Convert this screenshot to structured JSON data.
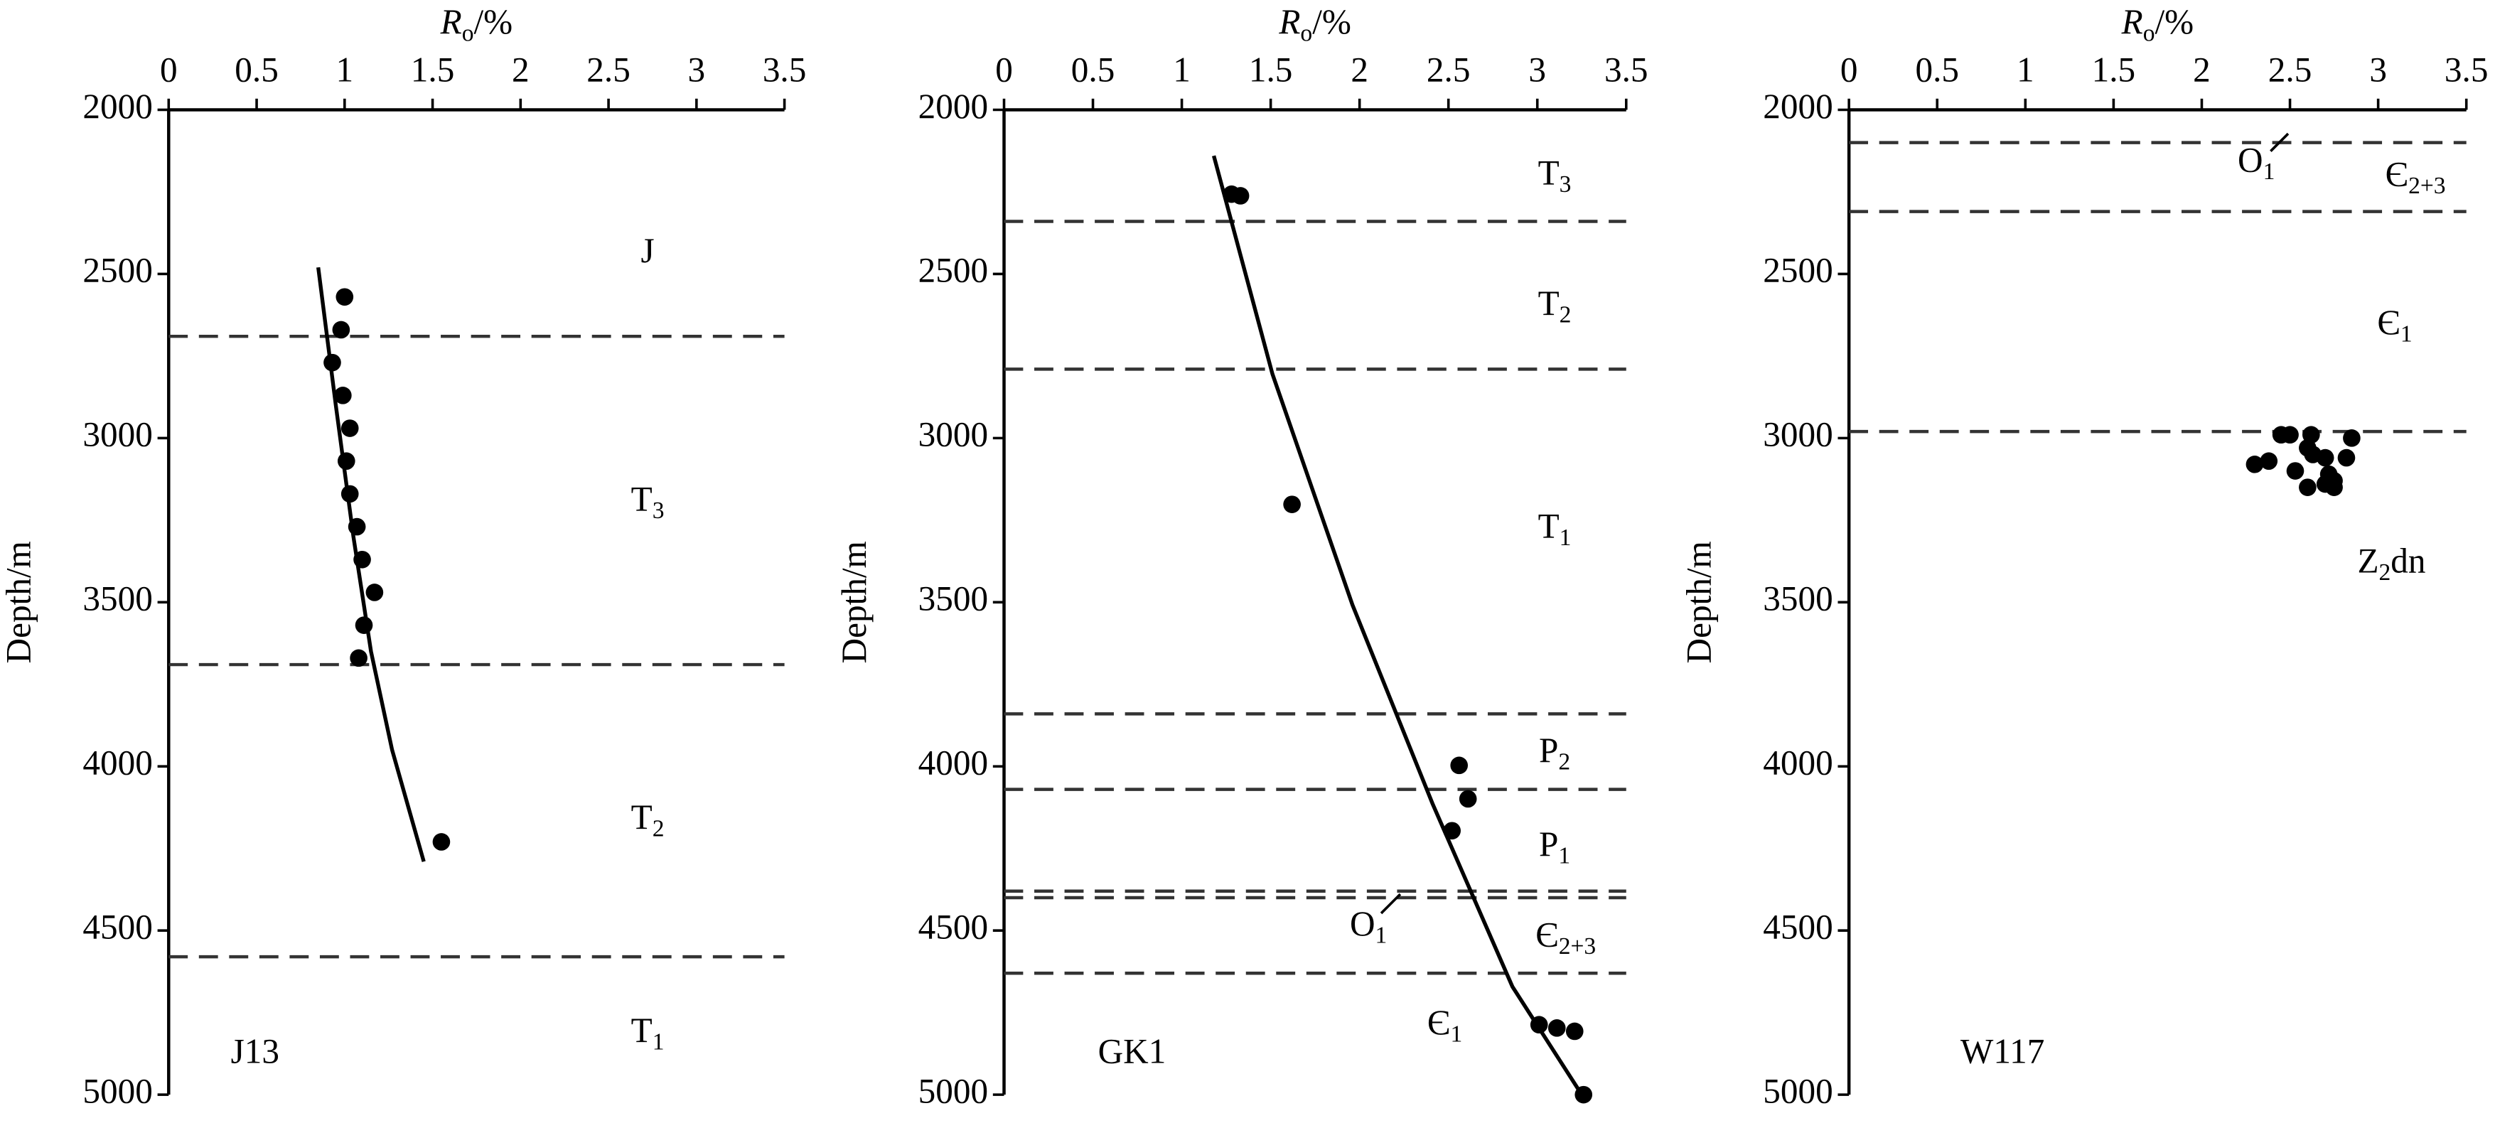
{
  "chart_data": [
    {
      "type": "scatter",
      "well": "J13",
      "xlabel": {
        "symbol": "R",
        "sub": "o",
        "unit": "/%"
      },
      "ylabel": "Depth/m",
      "xlim": [
        0,
        3.5
      ],
      "xticks": [
        0,
        0.5,
        1,
        1.5,
        2,
        2.5,
        3,
        3.5
      ],
      "ylim": [
        2000,
        5000
      ],
      "yticks": [
        2000,
        2500,
        3000,
        3500,
        4000,
        4500,
        5000
      ],
      "y_inverted": true,
      "color": "#000000",
      "x": [
        1.0,
        0.98,
        0.93,
        0.99,
        1.03,
        1.01,
        1.03,
        1.07,
        1.1,
        1.17,
        1.11,
        1.08,
        1.55
      ],
      "y": [
        2570,
        2670,
        2770,
        2870,
        2970,
        3070,
        3170,
        3270,
        3370,
        3470,
        3570,
        3670,
        4230
      ],
      "curve": {
        "x": [
          0.85,
          0.95,
          1.05,
          1.15,
          1.27,
          1.45
        ],
        "y": [
          2480,
          2900,
          3300,
          3650,
          3950,
          4290
        ]
      },
      "boundaries": [
        2690,
        3690,
        4580
      ],
      "strata": [
        {
          "text": "J"
        },
        {
          "text": "T",
          "sub": "3"
        },
        {
          "text": "T",
          "sub": "2"
        },
        {
          "text": "T",
          "sub": "1"
        }
      ]
    },
    {
      "type": "scatter",
      "well": "GK1",
      "xlabel": {
        "symbol": "R",
        "sub": "o",
        "unit": "/%"
      },
      "ylabel": "Depth/m",
      "xlim": [
        0,
        3.5
      ],
      "xticks": [
        0,
        0.5,
        1,
        1.5,
        2,
        2.5,
        3,
        3.5
      ],
      "ylim": [
        2000,
        5000
      ],
      "yticks": [
        2000,
        2500,
        3000,
        3500,
        4000,
        4500,
        5000
      ],
      "y_inverted": true,
      "color": "#000000",
      "x": [
        1.28,
        1.33,
        1.62,
        2.56,
        2.61,
        2.52,
        3.01,
        3.11,
        3.21,
        3.26
      ],
      "y": [
        2257,
        2262,
        3202,
        3997,
        4099,
        4196,
        4787,
        4797,
        4807,
        5000
      ],
      "curve": {
        "x": [
          1.18,
          1.51,
          1.96,
          2.41,
          2.86,
          3.25
        ],
        "y": [
          2140,
          2805,
          3508,
          4113,
          4671,
          5000
        ]
      },
      "boundaries": [
        2340,
        2790,
        3840,
        4070,
        4380,
        4400,
        4630
      ],
      "strata": [
        {
          "text": "T",
          "sub": "3"
        },
        {
          "text": "T",
          "sub": "2"
        },
        {
          "text": "T",
          "sub": "1"
        },
        {
          "text": "P",
          "sub": "2"
        },
        {
          "text": "P",
          "sub": "1"
        },
        {
          "text": "O",
          "sub": "1"
        },
        {
          "text": "Є",
          "sub": "2+3"
        },
        {
          "text": "Є",
          "sub": "1"
        }
      ]
    },
    {
      "type": "scatter",
      "well": "W117",
      "xlabel": {
        "symbol": "R",
        "sub": "o",
        "unit": "/%"
      },
      "ylabel": "Depth/m",
      "xlim": [
        0,
        3.5
      ],
      "xticks": [
        0,
        0.5,
        1,
        1.5,
        2,
        2.5,
        3,
        3.5
      ],
      "ylim": [
        2000,
        5000
      ],
      "yticks": [
        2000,
        2500,
        3000,
        3500,
        4000,
        4500,
        5000
      ],
      "y_inverted": true,
      "color": "#000000",
      "x": [
        2.45,
        2.5,
        2.62,
        2.85,
        2.6,
        2.7,
        2.3,
        2.38,
        2.53,
        2.72,
        2.82,
        2.63,
        2.75,
        2.6,
        2.7,
        2.75
      ],
      "y": [
        2990,
        2990,
        2990,
        3000,
        3030,
        3060,
        3080,
        3070,
        3100,
        3110,
        3060,
        3050,
        3130,
        3150,
        3140,
        3150
      ],
      "boundaries": [
        2100,
        2310,
        2980
      ],
      "strata": [
        {
          "text": "O",
          "sub": "1"
        },
        {
          "text": "Є",
          "sub": "2+3"
        },
        {
          "text": "Є",
          "sub": "1"
        },
        {
          "text": "Z",
          "sub": "2",
          "after": "dn"
        }
      ]
    }
  ]
}
